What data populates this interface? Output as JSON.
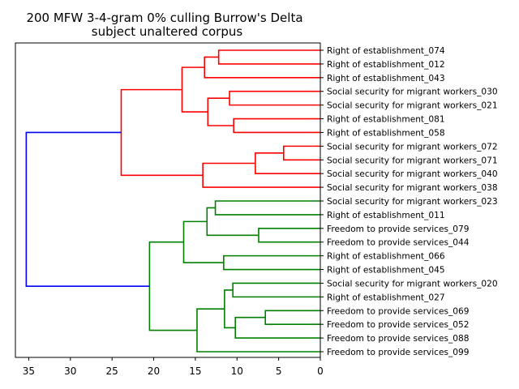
{
  "chart_data": {
    "type": "dendrogram",
    "title": "200 MFW 3-4-gram 0% culling Burrow's Delta",
    "subtitle": "subject unaltered corpus",
    "xlim": [
      36.6,
      0
    ],
    "x_ticks": [
      35,
      30,
      25,
      20,
      15,
      10,
      5,
      0
    ],
    "colors": {
      "upper_cluster": "#ff0000",
      "lower_cluster": "#008000",
      "root": "#0000ff"
    },
    "leaves": [
      "Right of establishment_074",
      "Right of establishment_012",
      "Right of establishment_043",
      "Social security for migrant workers_030",
      "Social security for migrant workers_021",
      "Right of establishment_081",
      "Right of establishment_058",
      "Social security for migrant workers_072",
      "Social security for migrant workers_071",
      "Social security for migrant workers_040",
      "Social security for migrant workers_038",
      "Social security for migrant workers_023",
      "Right of establishment_011",
      "Freedom to provide services_079",
      "Freedom to provide services_044",
      "Right of establishment_066",
      "Right of establishment_045",
      "Social security for migrant workers_020",
      "Right of establishment_027",
      "Freedom to provide services_069",
      "Freedom to provide services_052",
      "Freedom to provide services_088",
      "Freedom to provide services_099"
    ],
    "merges": [
      {
        "id": "m1",
        "a": "L0",
        "b": "L1",
        "height": 12.2,
        "color": "#ff0000"
      },
      {
        "id": "m2",
        "a": "m1",
        "b": "L2",
        "height": 13.9,
        "color": "#ff0000"
      },
      {
        "id": "m3",
        "a": "L3",
        "b": "L4",
        "height": 10.9,
        "color": "#ff0000"
      },
      {
        "id": "m4",
        "a": "L5",
        "b": "L6",
        "height": 10.4,
        "color": "#ff0000"
      },
      {
        "id": "m5",
        "a": "m3",
        "b": "m4",
        "height": 13.5,
        "color": "#ff0000"
      },
      {
        "id": "m6",
        "a": "m2",
        "b": "m5",
        "height": 16.6,
        "color": "#ff0000"
      },
      {
        "id": "m7",
        "a": "L7",
        "b": "L8",
        "height": 4.4,
        "color": "#ff0000"
      },
      {
        "id": "m8",
        "a": "m7",
        "b": "L9",
        "height": 7.8,
        "color": "#ff0000"
      },
      {
        "id": "m9",
        "a": "m8",
        "b": "L10",
        "height": 14.1,
        "color": "#ff0000"
      },
      {
        "id": "m10",
        "a": "m6",
        "b": "m9",
        "height": 23.9,
        "color": "#ff0000"
      },
      {
        "id": "m11",
        "a": "L11",
        "b": "L12",
        "height": 12.6,
        "color": "#008000"
      },
      {
        "id": "m12",
        "a": "L13",
        "b": "L14",
        "height": 7.4,
        "color": "#008000"
      },
      {
        "id": "m13",
        "a": "m11",
        "b": "m12",
        "height": 13.6,
        "color": "#008000"
      },
      {
        "id": "m14",
        "a": "L15",
        "b": "L16",
        "height": 11.6,
        "color": "#008000"
      },
      {
        "id": "m15",
        "a": "m13",
        "b": "m14",
        "height": 16.4,
        "color": "#008000"
      },
      {
        "id": "m16",
        "a": "L17",
        "b": "L18",
        "height": 10.5,
        "color": "#008000"
      },
      {
        "id": "m17",
        "a": "L19",
        "b": "L20",
        "height": 6.6,
        "color": "#008000"
      },
      {
        "id": "m18",
        "a": "m17",
        "b": "L21",
        "height": 10.2,
        "color": "#008000"
      },
      {
        "id": "m19",
        "a": "m16",
        "b": "m18",
        "height": 11.5,
        "color": "#008000"
      },
      {
        "id": "m20",
        "a": "m19",
        "b": "L22",
        "height": 14.8,
        "color": "#008000"
      },
      {
        "id": "m21",
        "a": "m15",
        "b": "m20",
        "height": 20.5,
        "color": "#008000"
      },
      {
        "id": "m22",
        "a": "m10",
        "b": "m21",
        "height": 35.3,
        "color": "#0000ff"
      }
    ]
  }
}
